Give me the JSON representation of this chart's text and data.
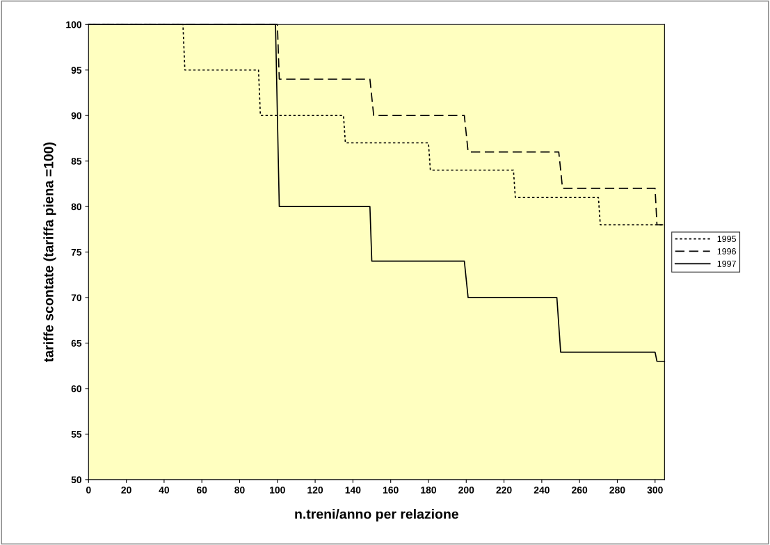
{
  "chart_data": {
    "type": "line",
    "xlabel": "n.treni/anno per relazione",
    "ylabel": "tariffe scontate (tariffa piena =100)",
    "xlim": [
      0,
      305
    ],
    "xticks": [
      0,
      20,
      40,
      60,
      80,
      100,
      120,
      140,
      160,
      180,
      200,
      220,
      240,
      260,
      280,
      300
    ],
    "ylim": [
      50,
      100
    ],
    "yticks": [
      50,
      55,
      60,
      65,
      70,
      75,
      80,
      85,
      90,
      95,
      100
    ],
    "grid": false,
    "legend": "right",
    "marker": "none",
    "series": [
      {
        "name": "1995",
        "color": "#000000",
        "line_style": "dotted",
        "x": [
          0,
          50,
          51,
          90,
          91,
          135,
          136,
          180,
          181,
          225,
          226,
          270,
          271,
          305
        ],
        "values": [
          100,
          100,
          95,
          95,
          90,
          90,
          87,
          87,
          84,
          84,
          81,
          81,
          78,
          78
        ]
      },
      {
        "name": "1996",
        "color": "#000000",
        "line_style": "dashed",
        "x": [
          0,
          100,
          101,
          149,
          151,
          199,
          201,
          249,
          251,
          300,
          301,
          305
        ],
        "values": [
          100,
          100,
          94,
          94,
          90,
          90,
          86,
          86,
          82,
          82,
          78,
          78
        ]
      },
      {
        "name": "1997",
        "color": "#000000",
        "line_style": "solid",
        "x": [
          0,
          99,
          101,
          149,
          150,
          199,
          201,
          248,
          250,
          300,
          301,
          305
        ],
        "values": [
          100,
          100,
          80,
          80,
          74,
          74,
          70,
          70,
          64,
          64,
          63,
          63
        ]
      }
    ]
  }
}
